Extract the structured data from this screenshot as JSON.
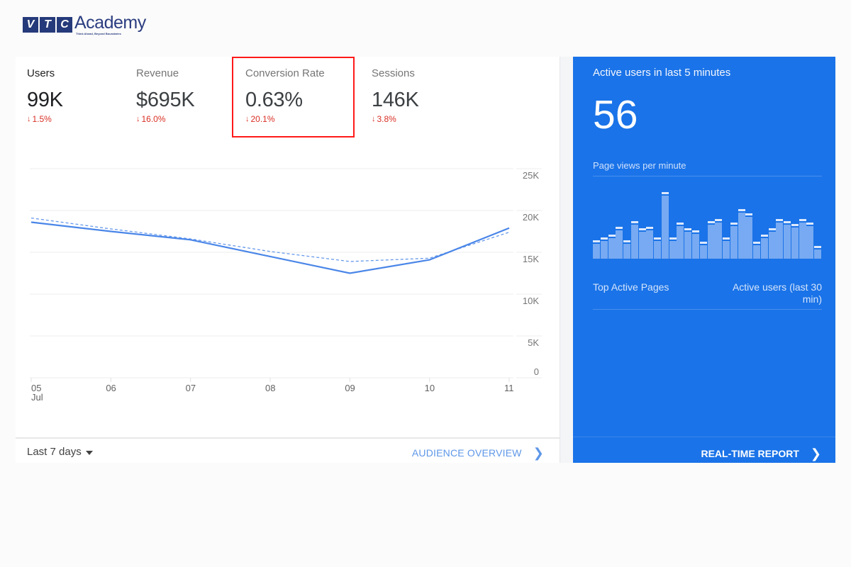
{
  "logo": {
    "letters": [
      "V",
      "T",
      "C"
    ],
    "word": "Academy",
    "tagline": "Think Ahead, Beyond Boundaries"
  },
  "metrics": [
    {
      "label": "Users",
      "value": "99K",
      "delta": "1.5%",
      "direction": "down",
      "active": true
    },
    {
      "label": "Revenue",
      "value": "$695K",
      "delta": "16.0%",
      "direction": "down",
      "active": false
    },
    {
      "label": "Conversion Rate",
      "value": "0.63%",
      "delta": "20.1%",
      "direction": "down",
      "active": false,
      "highlighted": true
    },
    {
      "label": "Sessions",
      "value": "146K",
      "delta": "3.8%",
      "direction": "down",
      "active": false
    }
  ],
  "icons": {
    "arrow_down": "🠗",
    "chevron_right": "›"
  },
  "colors": {
    "accent": "#1a73e8",
    "line": "#4a86e8",
    "negative": "#d93025",
    "highlight": "#ff1a1a",
    "link": "#5e97e8"
  },
  "footer": {
    "range_label": "Last 7 days",
    "link_label": "AUDIENCE OVERVIEW"
  },
  "realtime": {
    "title": "Active users in last 5 minutes",
    "count": "56",
    "subtitle": "Page views per minute",
    "table_col_left": "Top Active Pages",
    "table_col_right": "Active users (last 30 min)",
    "link_label": "REAL-TIME REPORT",
    "bars_relative": [
      21,
      25,
      29,
      40,
      21,
      48,
      38,
      40,
      25,
      89,
      25,
      46,
      38,
      35,
      19,
      48,
      51,
      25,
      46,
      65,
      59,
      19,
      29,
      38,
      51,
      48,
      44,
      51,
      46,
      13
    ]
  },
  "chart_data": {
    "type": "line",
    "title": "Users",
    "categories": [
      "05 Jul",
      "06",
      "07",
      "08",
      "09",
      "10",
      "11"
    ],
    "x_tick_labels": [
      "05",
      "06",
      "07",
      "08",
      "09",
      "10",
      "11"
    ],
    "x_sub_label": "Jul",
    "series": [
      {
        "name": "Users (current period)",
        "style": "solid",
        "values": [
          18600,
          17500,
          16500,
          14500,
          12500,
          14100,
          17900
        ]
      },
      {
        "name": "Users (previous period)",
        "style": "dashed",
        "values": [
          19100,
          17800,
          16600,
          15100,
          13900,
          14300,
          17400
        ]
      }
    ],
    "y_tick_labels": [
      "25K",
      "20K",
      "15K",
      "10K",
      "5K",
      "0"
    ],
    "ylim": [
      0,
      25000
    ],
    "xlabel": "",
    "ylabel": "",
    "grid": true,
    "y_axis_position": "right",
    "legend": "none"
  }
}
